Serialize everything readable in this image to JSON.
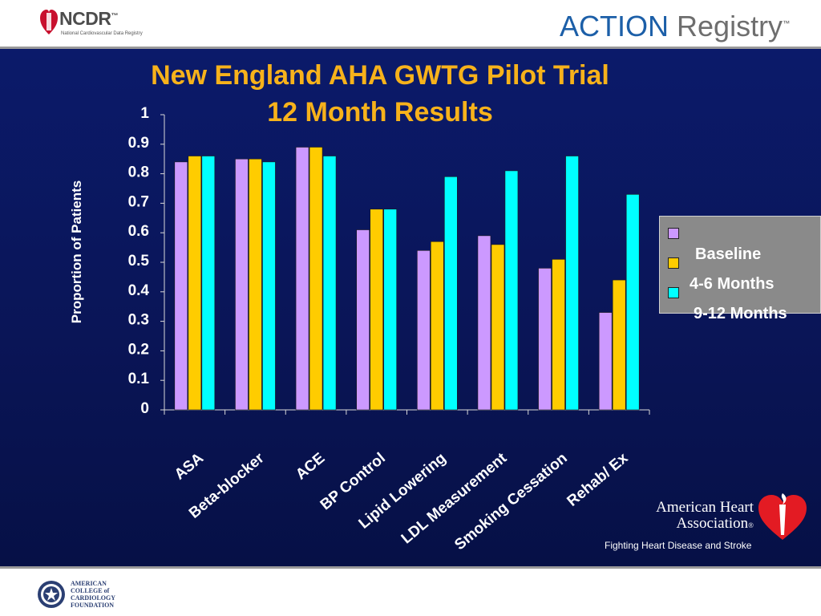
{
  "header": {
    "left_logo": {
      "name": "NCDR",
      "tm": "™",
      "subtitle": "National Cardiovascular Data Registry"
    },
    "right_logo": {
      "word1": "ACTION",
      "word2": "Registry",
      "tm": "™"
    }
  },
  "footer": {
    "acc_logo": {
      "lines": [
        "AMERICAN",
        "COLLEGE of",
        "CARDIOLOGY",
        "FOUNDATION"
      ]
    }
  },
  "slide": {
    "title_line1": "New England AHA GWTG Pilot Trial",
    "title_line2": "12 Month Results",
    "aha_logo": {
      "line1": "American Heart",
      "line2": "Association",
      "reg": "®",
      "tagline": "Fighting Heart Disease and Stroke"
    }
  },
  "colors": {
    "baseline": "#cc99ff",
    "months_4_6": "#ffcc00",
    "months_9_12": "#00ffff",
    "title": "#f7b21b"
  },
  "legend": {
    "labels": [
      "Baseline",
      "4-6 Months",
      "9-12 Months"
    ]
  },
  "chart_data": {
    "type": "bar",
    "ylabel": "Proportion of Patients",
    "ylim": [
      0,
      1
    ],
    "yticks": [
      "0",
      "0.1",
      "0.2",
      "0.3",
      "0.4",
      "0.5",
      "0.6",
      "0.7",
      "0.8",
      "0.9",
      "1"
    ],
    "categories": [
      "ASA",
      "Beta-blocker",
      "ACE",
      "BP Control",
      "Lipid Lowering",
      "LDL Measurement",
      "Smoking Cessation",
      "Rehab/ Ex"
    ],
    "series": [
      {
        "name": "Baseline",
        "values": [
          0.84,
          0.85,
          0.89,
          0.61,
          0.54,
          0.59,
          0.48,
          0.33
        ]
      },
      {
        "name": "4-6 Months",
        "values": [
          0.86,
          0.85,
          0.89,
          0.68,
          0.57,
          0.56,
          0.51,
          0.44
        ]
      },
      {
        "name": "9-12 Months",
        "values": [
          0.86,
          0.84,
          0.86,
          0.68,
          0.79,
          0.81,
          0.86,
          0.73
        ]
      }
    ],
    "grid": false,
    "legend_position": "right"
  }
}
